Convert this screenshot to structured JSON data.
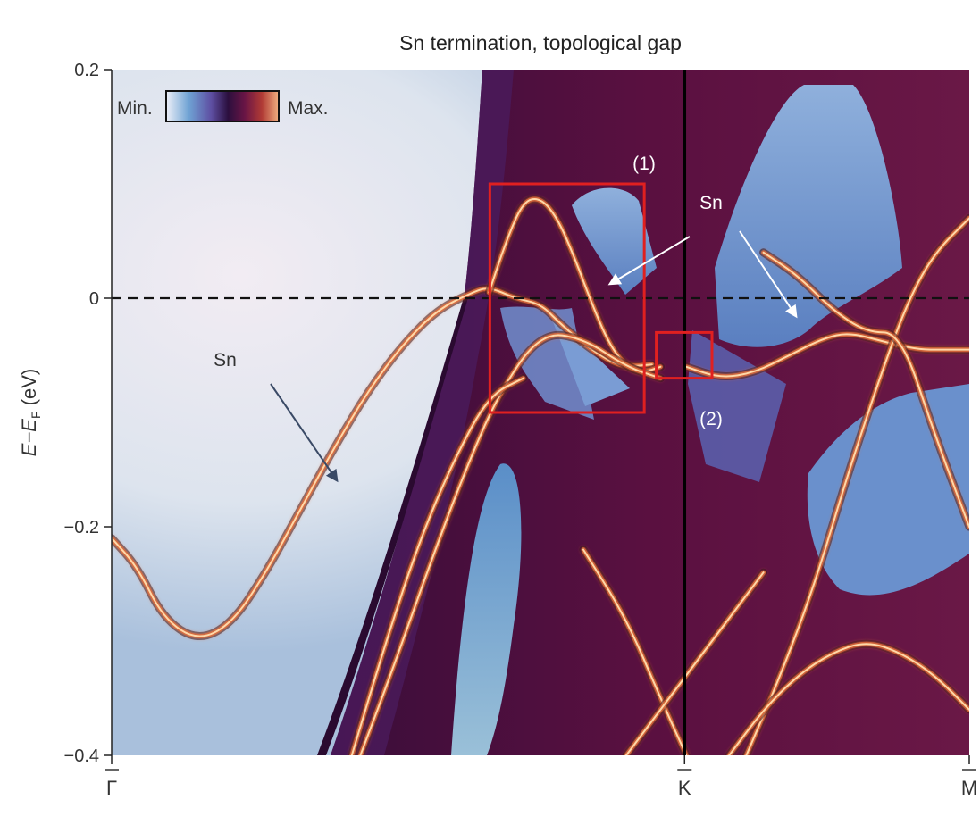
{
  "chart_data": {
    "type": "heatmap",
    "title": "Sn termination, topological gap",
    "ylabel": {
      "main": "E−E",
      "sub": "F",
      "unit": " (eV)"
    },
    "xlabel": "",
    "ylim": [
      -0.4,
      0.2
    ],
    "yticks": [
      {
        "value": 0.2,
        "label": "0.2"
      },
      {
        "value": 0.0,
        "label": "0"
      },
      {
        "value": -0.2,
        "label": "−0.2"
      },
      {
        "value": -0.4,
        "label": "−0.4"
      }
    ],
    "xlim": [
      0,
      1
    ],
    "xticks": [
      {
        "value": 0.0,
        "label": "Γ"
      },
      {
        "value": 0.668,
        "label": "K"
      },
      {
        "value": 1.0,
        "label": "M"
      }
    ],
    "fermi_level": 0.0,
    "colorbar": {
      "min_label": "Min.",
      "max_label": "Max.",
      "colors": [
        "#eef0f8",
        "#6fa3d4",
        "#5e4fa2",
        "#2b0f3e",
        "#6a1545",
        "#b03a35",
        "#f0b080"
      ]
    },
    "colors": {
      "background": "#eee6f0",
      "continuum": "#5a1040",
      "pocket": "#6f95cc",
      "band": "#ffd8a8",
      "highlight_box": "#e02020"
    },
    "annotations": [
      {
        "text": "Sn",
        "x": 0.135,
        "y": -0.11
      },
      {
        "text": "Sn",
        "x": 0.7,
        "y": 0.083
      },
      {
        "text": "(1)",
        "x": 0.62,
        "y": 0.118
      },
      {
        "text": "(2)",
        "x": 0.7,
        "y": -0.105
      }
    ],
    "boxes": [
      {
        "name": "(1)",
        "x": [
          0.441,
          0.621
        ],
        "y": [
          -0.1,
          0.1
        ]
      },
      {
        "name": "(2)",
        "x": [
          0.635,
          0.7
        ],
        "y": [
          -0.07,
          -0.03
        ]
      }
    ],
    "bands": [
      {
        "x": [
          0.0,
          0.03,
          0.06,
          0.1,
          0.14,
          0.18,
          0.22,
          0.26,
          0.3,
          0.34,
          0.38,
          0.42,
          0.44,
          0.47,
          0.5,
          0.52,
          0.55,
          0.58,
          0.6,
          0.63
        ],
        "y": [
          -0.21,
          -0.235,
          -0.28,
          -0.3,
          -0.285,
          -0.24,
          -0.185,
          -0.13,
          -0.08,
          -0.04,
          -0.01,
          0.005,
          0.01,
          0.0,
          -0.005,
          -0.02,
          -0.04,
          -0.055,
          -0.06,
          -0.058
        ]
      },
      {
        "x": [
          0.44,
          0.46,
          0.48,
          0.5,
          0.52,
          0.54,
          0.56,
          0.58,
          0.6,
          0.62,
          0.64
        ],
        "y": [
          0.005,
          0.05,
          0.085,
          0.088,
          0.07,
          0.035,
          -0.005,
          -0.04,
          -0.06,
          -0.065,
          -0.06
        ]
      },
      {
        "x": [
          0.29,
          0.33,
          0.37,
          0.41,
          0.45,
          0.5,
          0.55,
          0.6,
          0.64
        ],
        "y": [
          -0.4,
          -0.32,
          -0.235,
          -0.155,
          -0.085,
          -0.03,
          -0.035,
          -0.06,
          -0.07
        ]
      },
      {
        "x": [
          0.28,
          0.32,
          0.36,
          0.4,
          0.44,
          0.48
        ],
        "y": [
          -0.4,
          -0.3,
          -0.21,
          -0.14,
          -0.085,
          -0.07
        ]
      },
      {
        "x": [
          0.67,
          0.71,
          0.75,
          0.79,
          0.83,
          0.86,
          0.9,
          0.94,
          0.97,
          1.0
        ],
        "y": [
          -0.06,
          -0.07,
          -0.065,
          -0.05,
          -0.035,
          -0.03,
          -0.038,
          -0.045,
          -0.045,
          -0.045
        ]
      },
      {
        "x": [
          0.74,
          0.78,
          0.82,
          0.86,
          0.9,
          0.93,
          0.96,
          1.0
        ],
        "y": [
          -0.4,
          -0.33,
          -0.25,
          -0.15,
          -0.06,
          0.0,
          0.04,
          0.07
        ]
      },
      {
        "x": [
          0.76,
          0.8,
          0.84,
          0.88,
          0.92,
          0.96,
          1.0
        ],
        "y": [
          0.04,
          0.02,
          -0.01,
          -0.03,
          -0.03,
          -0.12,
          -0.2
        ]
      },
      {
        "x": [
          0.72,
          0.76,
          0.8,
          0.84,
          0.88,
          0.92,
          0.96,
          1.0
        ],
        "y": [
          -0.4,
          -0.36,
          -0.33,
          -0.31,
          -0.3,
          -0.31,
          -0.33,
          -0.36
        ]
      },
      {
        "x": [
          0.55,
          0.6,
          0.64,
          0.67
        ],
        "y": [
          -0.22,
          -0.28,
          -0.35,
          -0.4
        ]
      },
      {
        "x": [
          0.6,
          0.64,
          0.68,
          0.72,
          0.76
        ],
        "y": [
          -0.4,
          -0.36,
          -0.32,
          -0.28,
          -0.24
        ]
      }
    ]
  }
}
